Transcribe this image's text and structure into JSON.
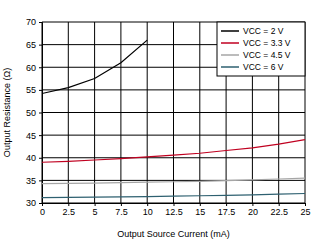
{
  "chart_data": {
    "type": "line",
    "x_label": "Output Source Current (mA)",
    "y_label": "Output Resistance (Ω)",
    "x": [
      0,
      2.5,
      5,
      7.5,
      10,
      12.5,
      15,
      17.5,
      20,
      22.5,
      25
    ],
    "series": [
      {
        "name": "VCC = 2 V",
        "color": "#000000",
        "values": [
          54.2,
          55.5,
          57.5,
          61,
          66,
          null,
          null,
          null,
          null,
          null,
          null
        ]
      },
      {
        "name": "VCC = 3.3 V",
        "color": "#c00020",
        "values": [
          39,
          39.2,
          39.5,
          39.8,
          40.2,
          40.6,
          41,
          41.6,
          42.2,
          43,
          44
        ]
      },
      {
        "name": "VCC = 4.5 V",
        "color": "#a6a6a6",
        "values": [
          34.3,
          34.35,
          34.4,
          34.5,
          34.6,
          34.7,
          34.8,
          34.95,
          35.1,
          35.3,
          35.5
        ]
      },
      {
        "name": "VCC = 6 V",
        "color": "#2e6070",
        "values": [
          31.2,
          31.25,
          31.3,
          31.35,
          31.4,
          31.5,
          31.6,
          31.7,
          31.8,
          31.95,
          32.1
        ]
      }
    ],
    "xlim": [
      0,
      25
    ],
    "xticks": [
      0,
      2.5,
      5,
      7.5,
      10,
      12.5,
      15,
      17.5,
      20,
      22.5,
      25
    ],
    "ylim": [
      30,
      70
    ],
    "yticks": [
      30,
      35,
      40,
      45,
      50,
      55,
      60,
      65,
      70
    ],
    "grid": true,
    "legend": "top-right"
  }
}
